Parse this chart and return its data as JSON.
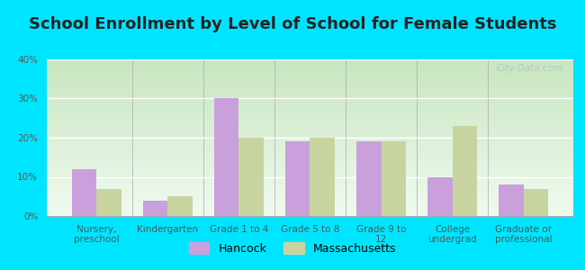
{
  "title": "School Enrollment by Level of School for Female Students",
  "categories": [
    "Nursery,\npreschool",
    "Kindergarten",
    "Grade 1 to 4",
    "Grade 5 to 8",
    "Grade 9 to\n12",
    "College\nundergrad",
    "Graduate or\nprofessional"
  ],
  "hancock": [
    12,
    4,
    30,
    19,
    19,
    10,
    8
  ],
  "massachusetts": [
    7,
    5,
    20,
    20,
    19,
    23,
    7
  ],
  "hancock_color": "#c9a0dc",
  "massachusetts_color": "#c8d4a0",
  "background_color": "#00e5ff",
  "grad_top": "#c8e6c0",
  "grad_bottom": "#f0faf0",
  "ylim": [
    0,
    40
  ],
  "yticks": [
    0,
    10,
    20,
    30,
    40
  ],
  "bar_width": 0.35,
  "legend_hancock": "Hancock",
  "legend_massachusetts": "Massachusetts",
  "title_fontsize": 13,
  "tick_fontsize": 7.5,
  "legend_fontsize": 9,
  "watermark": "City-Data.com"
}
